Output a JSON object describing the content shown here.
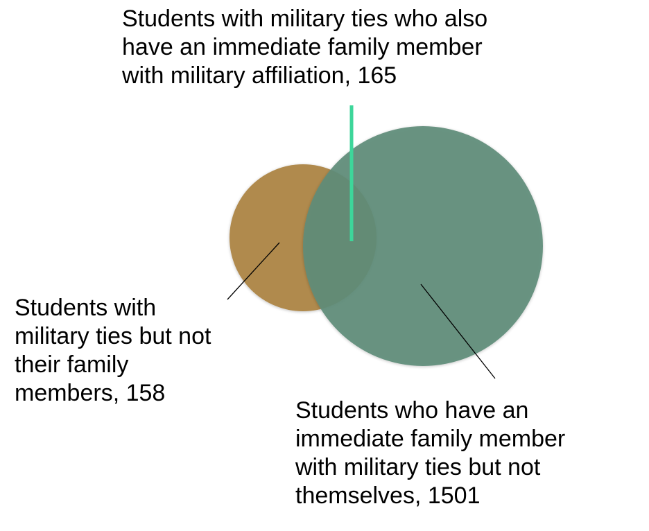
{
  "colors": {
    "military_only_circle": "#b08a4e",
    "family_circle": "#5f8c7a",
    "overlap_leader_line": "#3dd69a",
    "leader_line": "#000000",
    "text": "#000000",
    "background": "#ffffff"
  },
  "venn": {
    "sets": [
      {
        "key": "military-ties",
        "color": "#b08a4e"
      },
      {
        "key": "family-military-affiliation",
        "color": "#5f8c7a"
      }
    ],
    "regions": [
      {
        "key": "overlap",
        "lines": [
          "Students with military ties who also",
          "have an immediate family member",
          "with military affiliation, 165"
        ],
        "value": 165
      },
      {
        "key": "military-only",
        "lines": [
          "Students with",
          "military ties but not",
          "their family",
          "members, 158"
        ],
        "value": 158
      },
      {
        "key": "family-only",
        "lines": [
          "Students who have an",
          "immediate family member",
          "with military ties but not",
          "themselves, 1501"
        ],
        "value": 1501
      }
    ]
  }
}
